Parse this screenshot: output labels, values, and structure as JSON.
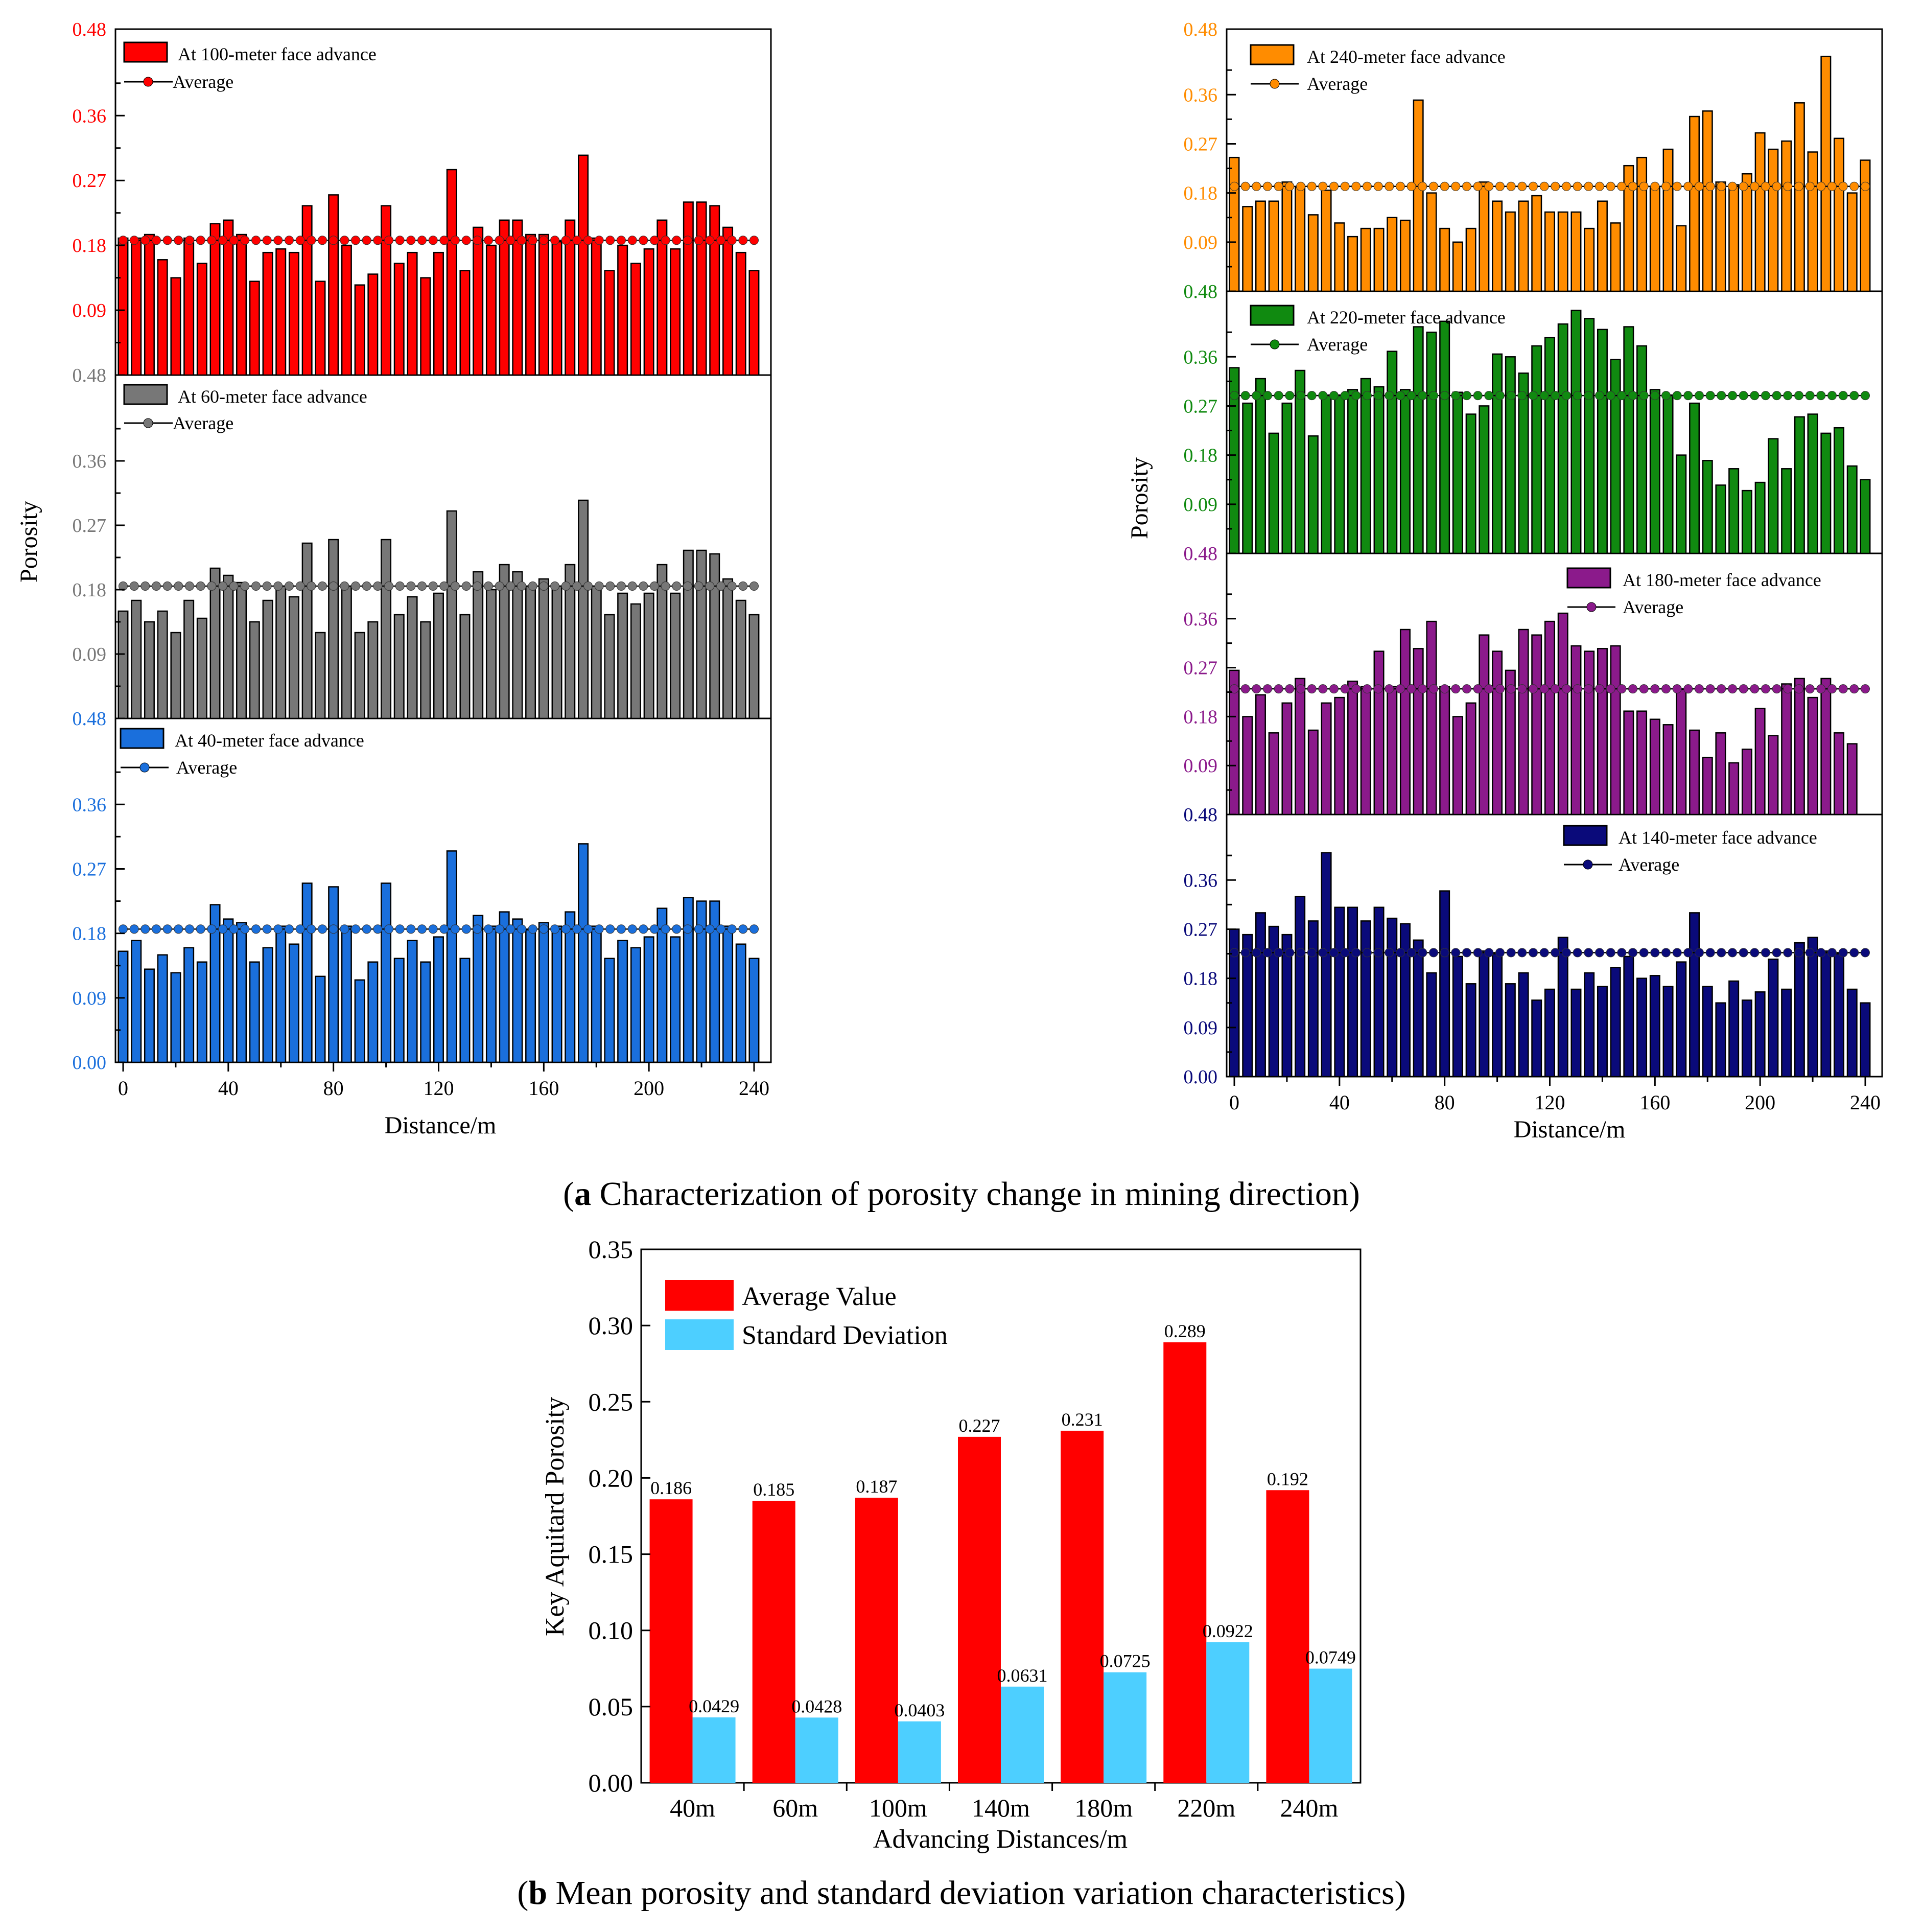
{
  "captions": {
    "a_letter": "a",
    "a_text": " Characterization of porosity change in mining direction",
    "b_letter": "b",
    "b_text": " Mean porosity and standard deviation variation characteristics"
  },
  "panel_a": {
    "x_ticks": [
      "0",
      "40",
      "80",
      "120",
      "160",
      "200",
      "240"
    ],
    "x_max": 240,
    "y_max": 0.48,
    "y_ticks": [
      "0.00",
      "0.09",
      "0.18",
      "0.27",
      "0.36",
      "0.48"
    ],
    "xlabel": "Distance/m",
    "ylabel": "Porosity",
    "average_label": "Average"
  },
  "chart_data": [
    {
      "type": "bar",
      "id": "adv100",
      "title": "At 100-meter face advance",
      "color": "#ff0000",
      "average": 0.187,
      "x_start": 0,
      "x_step": 5,
      "values": [
        0.19,
        0.19,
        0.195,
        0.16,
        0.135,
        0.19,
        0.155,
        0.21,
        0.215,
        0.195,
        0.13,
        0.17,
        0.175,
        0.17,
        0.235,
        0.13,
        0.25,
        0.18,
        0.125,
        0.14,
        0.235,
        0.155,
        0.17,
        0.135,
        0.17,
        0.285,
        0.145,
        0.205,
        0.18,
        0.215,
        0.215,
        0.195,
        0.195,
        0.185,
        0.215,
        0.305,
        0.19,
        0.145,
        0.18,
        0.155,
        0.175,
        0.215,
        0.175,
        0.24,
        0.24,
        0.235,
        0.205,
        0.17,
        0.145
      ]
    },
    {
      "type": "bar",
      "id": "adv60",
      "title": "At 60-meter face advance",
      "color": "#777777",
      "average": 0.185,
      "x_start": 0,
      "x_step": 5,
      "values": [
        0.15,
        0.165,
        0.135,
        0.15,
        0.12,
        0.165,
        0.14,
        0.21,
        0.2,
        0.19,
        0.135,
        0.165,
        0.185,
        0.17,
        0.245,
        0.12,
        0.25,
        0.185,
        0.12,
        0.135,
        0.25,
        0.145,
        0.17,
        0.135,
        0.175,
        0.29,
        0.145,
        0.205,
        0.18,
        0.215,
        0.205,
        0.185,
        0.195,
        0.185,
        0.215,
        0.305,
        0.185,
        0.145,
        0.175,
        0.16,
        0.175,
        0.215,
        0.175,
        0.235,
        0.235,
        0.23,
        0.195,
        0.165,
        0.145
      ]
    },
    {
      "type": "bar",
      "id": "adv40",
      "title": "At 40-meter face advance",
      "color": "#1a6fdc",
      "average": 0.186,
      "x_start": 0,
      "x_step": 5,
      "values": [
        0.155,
        0.17,
        0.13,
        0.15,
        0.125,
        0.16,
        0.14,
        0.22,
        0.2,
        0.195,
        0.14,
        0.16,
        0.19,
        0.165,
        0.25,
        0.12,
        0.245,
        0.19,
        0.115,
        0.14,
        0.25,
        0.145,
        0.17,
        0.14,
        0.175,
        0.295,
        0.145,
        0.205,
        0.19,
        0.21,
        0.2,
        0.185,
        0.195,
        0.19,
        0.21,
        0.305,
        0.19,
        0.145,
        0.17,
        0.16,
        0.175,
        0.215,
        0.175,
        0.23,
        0.225,
        0.225,
        0.19,
        0.165,
        0.145
      ]
    },
    {
      "type": "bar",
      "id": "adv240",
      "title": "At 240-meter face advance",
      "color": "#ff8c00",
      "average": 0.192,
      "x_start": 0,
      "x_step": 5,
      "values": [
        0.245,
        0.155,
        0.165,
        0.165,
        0.2,
        0.19,
        0.14,
        0.185,
        0.125,
        0.1,
        0.115,
        0.115,
        0.135,
        0.13,
        0.35,
        0.18,
        0.115,
        0.09,
        0.115,
        0.2,
        0.165,
        0.145,
        0.165,
        0.175,
        0.145,
        0.145,
        0.145,
        0.115,
        0.165,
        0.125,
        0.23,
        0.245,
        0.19,
        0.26,
        0.12,
        0.32,
        0.33,
        0.2,
        0.195,
        0.215,
        0.29,
        0.26,
        0.275,
        0.345,
        0.255,
        0.43,
        0.28,
        0.18,
        0.24
      ]
    },
    {
      "type": "bar",
      "id": "adv220",
      "title": "At 220-meter face advance",
      "color": "#108a10",
      "average": 0.289,
      "x_start": 0,
      "x_step": 5,
      "values": [
        0.34,
        0.275,
        0.32,
        0.22,
        0.275,
        0.335,
        0.215,
        0.29,
        0.29,
        0.3,
        0.32,
        0.305,
        0.37,
        0.3,
        0.415,
        0.405,
        0.425,
        0.295,
        0.255,
        0.27,
        0.365,
        0.36,
        0.33,
        0.38,
        0.395,
        0.42,
        0.445,
        0.43,
        0.41,
        0.355,
        0.415,
        0.38,
        0.3,
        0.29,
        0.18,
        0.275,
        0.17,
        0.125,
        0.155,
        0.115,
        0.13,
        0.21,
        0.155,
        0.25,
        0.255,
        0.22,
        0.23,
        0.16,
        0.135
      ]
    },
    {
      "type": "bar",
      "id": "adv180",
      "title": "At 180-meter face advance",
      "color": "#8b1a8b",
      "average": 0.231,
      "x_start": 0,
      "x_step": 5,
      "values": [
        0.265,
        0.18,
        0.22,
        0.15,
        0.205,
        0.25,
        0.155,
        0.205,
        0.215,
        0.245,
        0.235,
        0.3,
        0.235,
        0.34,
        0.305,
        0.355,
        0.235,
        0.18,
        0.205,
        0.33,
        0.3,
        0.265,
        0.34,
        0.33,
        0.355,
        0.37,
        0.31,
        0.3,
        0.305,
        0.31,
        0.19,
        0.19,
        0.175,
        0.165,
        0.23,
        0.155,
        0.105,
        0.15,
        0.095,
        0.12,
        0.195,
        0.145,
        0.24,
        0.25,
        0.215,
        0.25,
        0.15,
        0.13
      ]
    },
    {
      "type": "bar",
      "id": "adv140",
      "title": "At 140-meter face advance",
      "color": "#0a0a7a",
      "average": 0.227,
      "x_start": 0,
      "x_step": 5,
      "values": [
        0.27,
        0.26,
        0.3,
        0.275,
        0.26,
        0.33,
        0.285,
        0.41,
        0.31,
        0.31,
        0.285,
        0.31,
        0.29,
        0.28,
        0.25,
        0.19,
        0.34,
        0.22,
        0.17,
        0.23,
        0.225,
        0.17,
        0.19,
        0.14,
        0.16,
        0.255,
        0.16,
        0.19,
        0.165,
        0.2,
        0.22,
        0.18,
        0.185,
        0.165,
        0.21,
        0.3,
        0.165,
        0.135,
        0.175,
        0.14,
        0.155,
        0.215,
        0.16,
        0.245,
        0.255,
        0.23,
        0.225,
        0.16,
        0.135
      ]
    },
    {
      "type": "bar",
      "id": "summary",
      "xlabel": "Advancing Distances/m",
      "ylabel": "Key Aquitard Porosity",
      "ylim": [
        0,
        0.35
      ],
      "y_ticks": [
        "0.00",
        "0.05",
        "0.10",
        "0.15",
        "0.20",
        "0.25",
        "0.30",
        "0.35"
      ],
      "categories": [
        "40m",
        "60m",
        "100m",
        "140m",
        "180m",
        "220m",
        "240m"
      ],
      "series": [
        {
          "name": "Average Value",
          "color": "#ff0000",
          "values": [
            0.186,
            0.185,
            0.187,
            0.227,
            0.231,
            0.289,
            0.192
          ],
          "labels": [
            "0.186",
            "0.185",
            "0.187",
            "0.227",
            "0.231",
            "0.289",
            "0.192"
          ]
        },
        {
          "name": "Standard Deviation",
          "color": "#4dcfff",
          "values": [
            0.0429,
            0.0428,
            0.0403,
            0.0631,
            0.0725,
            0.0922,
            0.0749
          ],
          "labels": [
            "0.0429",
            "0.0428",
            "0.0403",
            "0.0631",
            "0.0725",
            "0.0922",
            "0.0749"
          ]
        }
      ]
    }
  ]
}
